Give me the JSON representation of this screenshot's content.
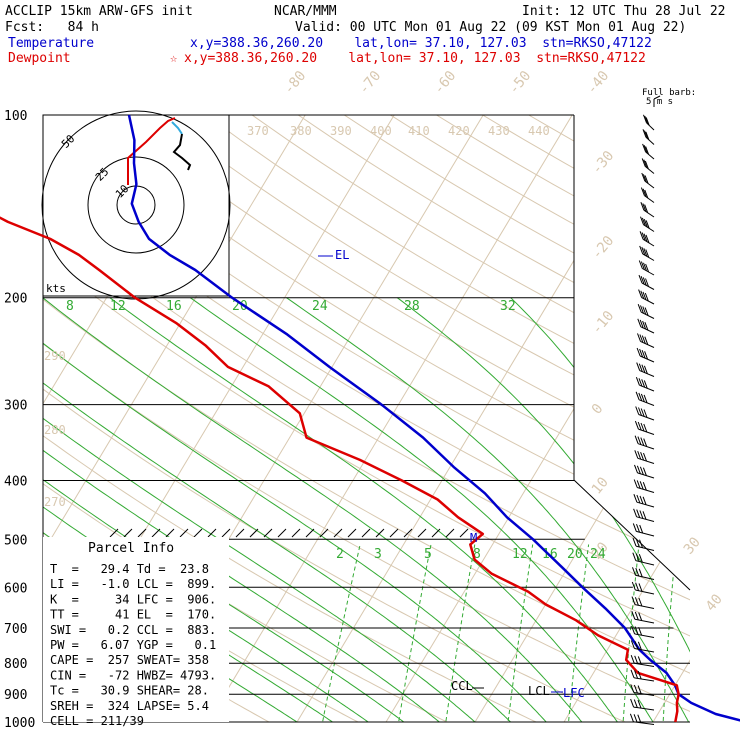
{
  "header": {
    "model": "ACCLIP 15km ARW-GFS init",
    "center": "NCAR/MMM",
    "init": "Init: 12 UTC Thu 28 Jul 22",
    "fcst": "Fcst:   84 h",
    "valid": "Valid: 00 UTC Mon 01 Aug 22 (09 KST Mon 01 Aug 22)",
    "temp_label": "Temperature",
    "temp_loc": "x,y=388.36,260.20    lat,lon= 37.10, 127.03  stn=RKSO,47122",
    "dew_label": "Dewpoint",
    "dew_loc": "x,y=388.36,260.20    lat,lon= 37.10, 127.03  stn=RKSO,47122",
    "full_barb": "Full barb:",
    "barb_unit": "5 m s",
    "temp_color": "#0000cc",
    "dew_color": "#dd0000"
  },
  "hodograph": {
    "rings": [
      "50",
      "25",
      "10"
    ],
    "unit": "kts"
  },
  "parcel": {
    "title": "Parcel Info",
    "rows": [
      "T  =   29.4 Td =  23.8",
      "LI =   -1.0 LCL =  899.",
      "K  =     34 LFC =  906.",
      "TT =     41 EL  =  170.",
      "SWI =   0.2 CCL =  883.",
      "PW =   6.07 YGP =   0.1",
      "CAPE =  257 SWEAT= 358",
      "CIN =   -72 HWBZ= 4793.",
      "Tc =   30.9 SHEAR= 28.",
      "SREH =  324 LAPSE= 5.4",
      "CELL = 211/39"
    ]
  },
  "levels": {
    "el": "EL",
    "ccl": "CCL",
    "lcl": "LCL",
    "lfc": "LFC",
    "m": "M"
  },
  "chart_data": {
    "type": "line",
    "title": "",
    "xlabel": "",
    "ylabel": "",
    "yscale": "log",
    "ylim": [
      1000,
      100
    ],
    "pressure_ticks": [
      "100",
      "200",
      "300",
      "400",
      "500",
      "600",
      "700",
      "800",
      "900",
      "1000"
    ],
    "isotherm_labels": [
      "-80",
      "-70",
      "-60",
      "-50",
      "-40",
      "-30",
      "-20",
      "-10",
      "0",
      "10",
      "20",
      "30",
      "40"
    ],
    "theta_labels_top": [
      "370",
      "380",
      "390",
      "400",
      "410",
      "420",
      "430",
      "440"
    ],
    "theta_labels_left": [
      "290",
      "280",
      "270"
    ],
    "mixing_ratio_upper": [
      "8",
      "12",
      "16",
      "20",
      "24",
      "28",
      "32"
    ],
    "mixing_ratio_lower": [
      "2",
      "3",
      "5",
      "8",
      "12",
      "16",
      "20",
      "24"
    ],
    "series": [
      {
        "name": "Temperature",
        "color": "#0000cc",
        "p": [
          1000,
          970,
          930,
          900,
          870,
          830,
          790,
          760,
          700,
          650,
          600,
          560,
          520,
          500,
          460,
          420,
          380,
          340,
          300,
          260,
          230,
          200,
          180,
          170,
          160,
          150,
          140,
          130,
          120,
          110,
          100
        ],
        "t": [
          30.5,
          26.5,
          23.0,
          21.0,
          20.0,
          18.2,
          15.5,
          13.6,
          10.5,
          7.0,
          3.0,
          -0.3,
          -3.9,
          -5.8,
          -10.2,
          -14.3,
          -19.6,
          -25.0,
          -31.9,
          -40.3,
          -47.2,
          -55.9,
          -61.9,
          -65.8,
          -69.2,
          -71.5,
          -73.5,
          -74.3,
          -76.0,
          -77.5,
          -79.8
        ]
      },
      {
        "name": "Dewpoint",
        "color": "#dd0000",
        "p": [
          1000,
          960,
          930,
          900,
          870,
          830,
          790,
          760,
          720,
          680,
          640,
          610,
          570,
          540,
          510,
          490,
          460,
          430,
          400,
          370,
          340,
          310,
          280,
          260,
          240,
          220,
          200,
          180,
          170,
          160,
          150,
          140,
          130,
          120,
          110,
          100
        ],
        "t": [
          22.5,
          22.0,
          21.4,
          21.0,
          20.2,
          15.0,
          12.8,
          12.3,
          8.0,
          4.5,
          0.0,
          -2.8,
          -8.1,
          -11.0,
          -12.5,
          -11.8,
          -15.7,
          -19.2,
          -24.5,
          -30.6,
          -38.1,
          -40.5,
          -45.8,
          -51.7,
          -55.6,
          -60.5,
          -66.8,
          -72.7,
          -76.0,
          -80.3,
          -86.2,
          -91.3,
          -96.0,
          -97.1,
          -97.5,
          -98.0
        ]
      }
    ]
  }
}
